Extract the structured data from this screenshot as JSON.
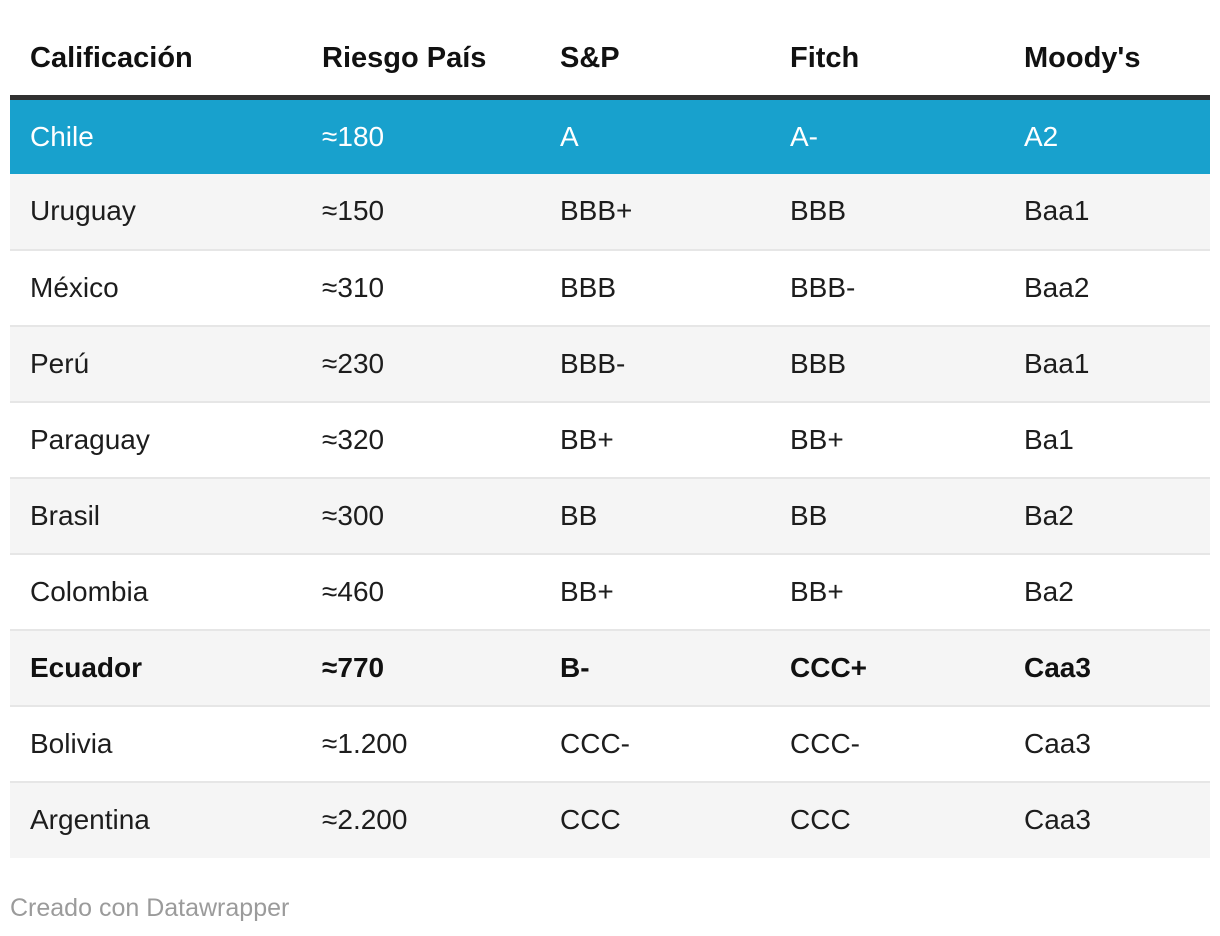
{
  "colors": {
    "highlight_row_bg": "#18a1cd",
    "highlight_row_text": "#ffffff",
    "stripe_bg": "#f5f5f5",
    "divider": "#e6e6e6",
    "header_rule": "#303030",
    "body_text": "#1d1d1d",
    "footer_text": "#9b9b9b"
  },
  "footer": {
    "attribution": "Creado con Datawrapper"
  },
  "chart_data": {
    "type": "table",
    "title": "",
    "columns": [
      "Calificación",
      "Riesgo País",
      "S&P",
      "Fitch",
      "Moody's"
    ],
    "rows": [
      {
        "cells": [
          "Chile",
          "≈180",
          "A",
          "A-",
          "A2"
        ],
        "style": "highlight"
      },
      {
        "cells": [
          "Uruguay",
          "≈150",
          "BBB+",
          "BBB",
          "Baa1"
        ],
        "style": null
      },
      {
        "cells": [
          "México",
          "≈310",
          "BBB",
          "BBB-",
          "Baa2"
        ],
        "style": null
      },
      {
        "cells": [
          "Perú",
          "≈230",
          "BBB-",
          "BBB",
          "Baa1"
        ],
        "style": null
      },
      {
        "cells": [
          "Paraguay",
          "≈320",
          "BB+",
          "BB+",
          "Ba1"
        ],
        "style": null
      },
      {
        "cells": [
          "Brasil",
          "≈300",
          "BB",
          "BB",
          "Ba2"
        ],
        "style": null
      },
      {
        "cells": [
          "Colombia",
          "≈460",
          "BB+",
          "BB+",
          "Ba2"
        ],
        "style": null
      },
      {
        "cells": [
          "Ecuador",
          "≈770",
          "B-",
          "CCC+",
          "Caa3"
        ],
        "style": "bold"
      },
      {
        "cells": [
          "Bolivia",
          "≈1.200",
          "CCC-",
          "CCC-",
          "Caa3"
        ],
        "style": null
      },
      {
        "cells": [
          "Argentina",
          "≈2.200",
          "CCC",
          "CCC",
          "Caa3"
        ],
        "style": null
      }
    ],
    "riesgo_pais_numeric": {
      "Chile": 180,
      "Uruguay": 150,
      "México": 310,
      "Perú": 230,
      "Paraguay": 320,
      "Brasil": 300,
      "Colombia": 460,
      "Ecuador": 770,
      "Bolivia": 1200,
      "Argentina": 2200
    }
  }
}
